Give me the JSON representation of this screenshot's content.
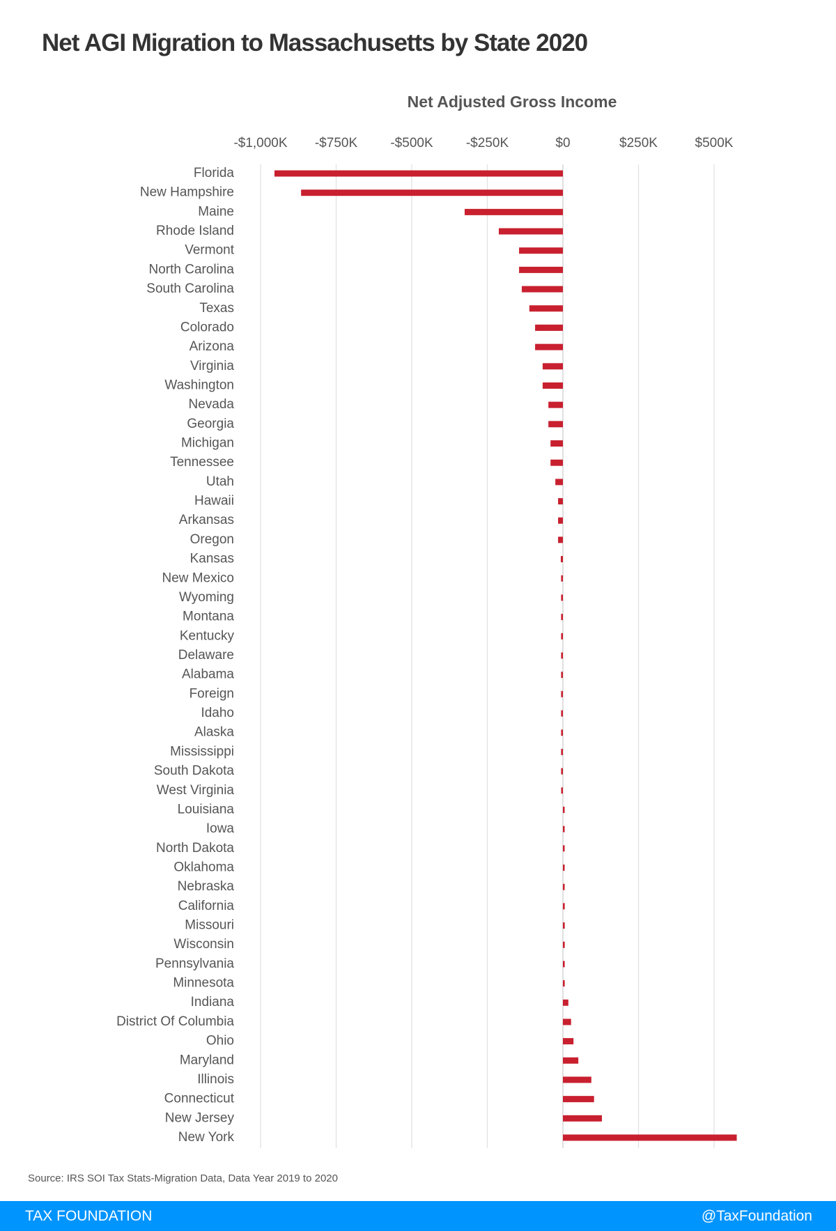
{
  "title": "Net AGI Migration to Massachusetts by State 2020",
  "source": "Source: IRS SOI Tax Stats-Migration Data, Data Year 2019 to 2020",
  "footer": {
    "brand": "TAX FOUNDATION",
    "handle": "@TaxFoundation"
  },
  "colors": {
    "bar": "#c8202f",
    "footer": "#0094ff",
    "grid": "#e0e0e0"
  },
  "chart_data": {
    "type": "bar",
    "orientation": "horizontal",
    "title": "Net AGI Migration to Massachusetts by State 2020",
    "xlabel": "Net Adjusted Gross Income",
    "ylabel": "",
    "units": "thousands of dollars",
    "xlim": [
      -1000,
      580
    ],
    "grid": true,
    "x_ticks": [
      {
        "value": -1000,
        "label": "-$1,000K"
      },
      {
        "value": -750,
        "label": "-$750K"
      },
      {
        "value": -500,
        "label": "-$500K"
      },
      {
        "value": -250,
        "label": "-$250K"
      },
      {
        "value": 0,
        "label": "$0"
      },
      {
        "value": 250,
        "label": "$250K"
      },
      {
        "value": 500,
        "label": "$500K"
      }
    ],
    "categories": [
      "Florida",
      "New Hampshire",
      "Maine",
      "Rhode Island",
      "Vermont",
      "North Carolina",
      "South Carolina",
      "Texas",
      "Colorado",
      "Arizona",
      "Virginia",
      "Washington",
      "Nevada",
      "Georgia",
      "Michigan",
      "Tennessee",
      "Utah",
      "Hawaii",
      "Arkansas",
      "Oregon",
      "Kansas",
      "New Mexico",
      "Wyoming",
      "Montana",
      "Kentucky",
      "Delaware",
      "Alabama",
      "Foreign",
      "Idaho",
      "Alaska",
      "Mississippi",
      "South Dakota",
      "West Virginia",
      "Louisiana",
      "Iowa",
      "North Dakota",
      "Oklahoma",
      "Nebraska",
      "California",
      "Missouri",
      "Wisconsin",
      "Pennsylvania",
      "Minnesota",
      "Indiana",
      "District Of Columbia",
      "Ohio",
      "Maryland",
      "Illinois",
      "Connecticut",
      "New Jersey",
      "New York"
    ],
    "values": [
      -954,
      -866,
      -325,
      -212,
      -145,
      -145,
      -136,
      -111,
      -92,
      -92,
      -67,
      -67,
      -48,
      -48,
      -41,
      -41,
      -25,
      -16,
      -16,
      -16,
      -7,
      -6,
      -6,
      -6,
      -6,
      -6,
      -6,
      -6,
      -6,
      -6,
      -6,
      -6,
      -5,
      5,
      5,
      5,
      5,
      5,
      6,
      6,
      6,
      6,
      6,
      18,
      27,
      35,
      51,
      94,
      103,
      129,
      575
    ]
  }
}
